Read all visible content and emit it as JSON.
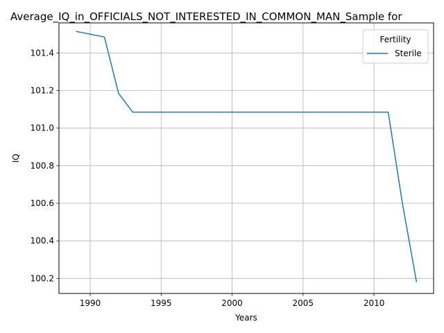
{
  "chart_data": {
    "type": "line",
    "title": "Average_IQ_in_OFFICIALS_NOT_INTERESTED_IN_COMMON_MAN_Sample for",
    "xlabel": "Years",
    "ylabel": "IQ",
    "xlim": [
      1987.8,
      2014.2
    ],
    "ylim": [
      100.12,
      101.56
    ],
    "x_ticks": [
      1990,
      1995,
      2000,
      2005,
      2010
    ],
    "x_tick_labels": [
      "1990",
      "1995",
      "2000",
      "2005",
      "2010"
    ],
    "y_ticks": [
      100.2,
      100.4,
      100.6,
      100.8,
      101.0,
      101.2,
      101.4
    ],
    "y_tick_labels": [
      "100.2",
      "100.4",
      "100.6",
      "100.8",
      "101.0",
      "101.2",
      "101.4"
    ],
    "grid": true,
    "legend": {
      "title": "Fertility",
      "placement": "top-right"
    },
    "series": [
      {
        "name": "Sterile",
        "color": "#1f77b4",
        "x": [
          1989,
          1991,
          1992,
          1993,
          2011,
          2012,
          2013
        ],
        "y": [
          101.515,
          101.485,
          101.185,
          101.085,
          101.085,
          100.6,
          100.18
        ]
      }
    ]
  }
}
